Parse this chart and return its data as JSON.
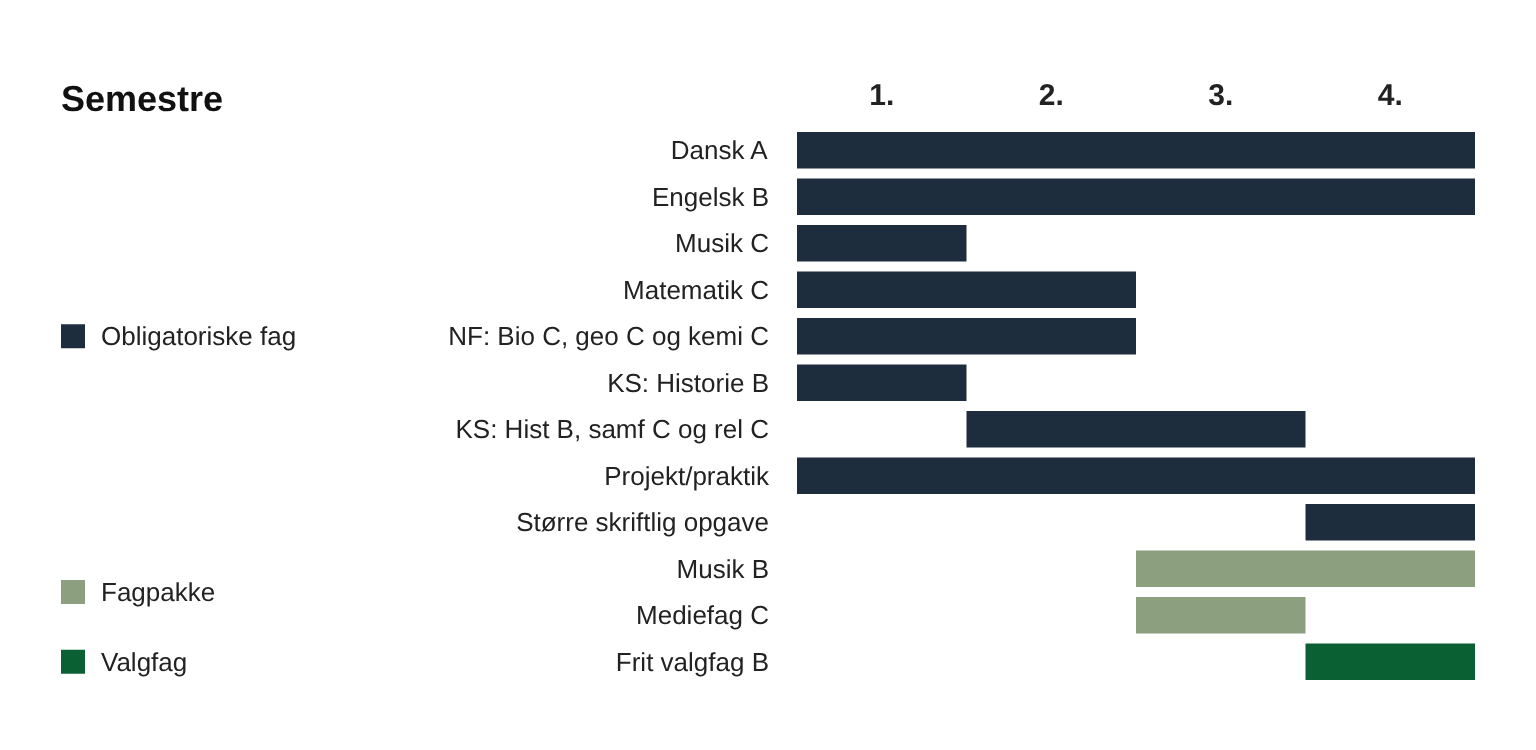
{
  "chart_data": {
    "type": "bar",
    "orientation": "horizontal",
    "title": "Semestre",
    "categories": [
      "Dansk A",
      "Engelsk B",
      "Musik C",
      "Matematik C",
      "NF: Bio C, geo C og kemi C",
      "KS: Historie B",
      "KS: Hist B, samf C og rel C",
      "Projekt/praktik",
      "Større skriftlig opgave",
      "Musik B",
      "Mediefag C",
      "Frit valgfag B"
    ],
    "series": [
      {
        "name": "Obligatoriske fag",
        "color": "#1e2d3e",
        "values": [
          4,
          4,
          1,
          2,
          2,
          1,
          2,
          4,
          1,
          null,
          null,
          null
        ],
        "base": [
          0,
          0,
          0,
          0,
          0,
          0,
          1,
          0,
          3,
          null,
          null,
          null
        ]
      },
      {
        "name": "Fagpakke",
        "color": "#8c9f7f",
        "values": [
          null,
          null,
          null,
          null,
          null,
          null,
          null,
          null,
          null,
          2,
          1,
          null
        ],
        "base": [
          null,
          null,
          null,
          null,
          null,
          null,
          null,
          null,
          null,
          2,
          2,
          null
        ]
      },
      {
        "name": "Valgfag",
        "color": "#0a6032",
        "values": [
          null,
          null,
          null,
          null,
          null,
          null,
          null,
          null,
          null,
          null,
          null,
          1
        ],
        "base": [
          null,
          null,
          null,
          null,
          null,
          null,
          null,
          null,
          null,
          null,
          null,
          3
        ]
      }
    ],
    "xlim": [
      0,
      4
    ],
    "xticks": [
      {
        "value": 0.5,
        "label": "1."
      },
      {
        "value": 1.5,
        "label": "2."
      },
      {
        "value": 2.5,
        "label": "3."
      },
      {
        "value": 3.5,
        "label": "4."
      }
    ],
    "legend": "left"
  }
}
